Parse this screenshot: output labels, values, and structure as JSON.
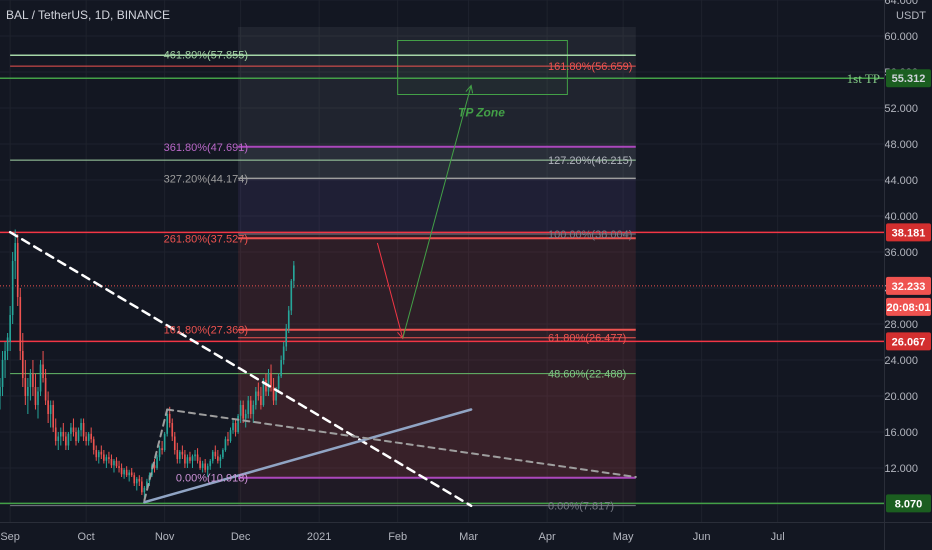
{
  "header": {
    "title": "BAL / TetherUS, 1D, BINANCE",
    "currency": "USDT"
  },
  "colors": {
    "bg": "#131722",
    "up": "#26a69a",
    "down": "#ef5350",
    "white": "#d1d4dc"
  },
  "yaxis": {
    "ticks": [
      "64.000",
      "60.000",
      "56.000",
      "52.000",
      "48.000",
      "44.000",
      "40.000",
      "36.000",
      "32.000",
      "28.000",
      "24.000",
      "20.000",
      "16.000",
      "12.000",
      "8.000"
    ],
    "tick_values": [
      64,
      60,
      56,
      52,
      48,
      44,
      40,
      36,
      32,
      28,
      24,
      20,
      16,
      12,
      8
    ]
  },
  "xaxis": {
    "labels": [
      {
        "label": "Sep",
        "day": 0
      },
      {
        "label": "Oct",
        "day": 30
      },
      {
        "label": "Nov",
        "day": 61
      },
      {
        "label": "Dec",
        "day": 91
      },
      {
        "label": "2021",
        "day": 122
      },
      {
        "label": "Feb",
        "day": 153
      },
      {
        "label": "Mar",
        "day": 181
      },
      {
        "label": "Apr",
        "day": 212
      },
      {
        "label": "May",
        "day": 242
      },
      {
        "label": "Jun",
        "day": 273
      },
      {
        "label": "Jul",
        "day": 303
      }
    ]
  },
  "price_badges": [
    {
      "label": "55.312",
      "value": 55.312,
      "color": "#1b5e20",
      "text": "#d1d4dc",
      "caption": "1st TP",
      "caption_color": "#81c784"
    },
    {
      "label": "38.181",
      "value": 38.181,
      "color": "#d32f2f",
      "text": "#ffffff"
    },
    {
      "label": "32.233",
      "value": 32.233,
      "color": "#ef5350",
      "text": "#ffffff"
    },
    {
      "label": "20:08:01",
      "value": 29.9,
      "color": "#ef5350",
      "text": "#ffffff"
    },
    {
      "label": "26.067",
      "value": 26.067,
      "color": "#d32f2f",
      "text": "#ffffff"
    },
    {
      "label": "8.070",
      "value": 8.07,
      "color": "#1b5e20",
      "text": "#ffffff"
    }
  ],
  "annotations": [
    {
      "text": "461.80%(57.855)",
      "value": 57.855,
      "color": "#a5d6a7"
    },
    {
      "text": "161.80%(56.659)",
      "value": 56.659,
      "color": "#ef5350"
    },
    {
      "text": "TP Zone",
      "value": 51.5,
      "color": "#43a047"
    },
    {
      "text": "361.80%(47.691)",
      "value": 47.691,
      "color": "#ba68c8"
    },
    {
      "text": "127.20%(46.215)",
      "value": 46.215,
      "color": "#b2b5be"
    },
    {
      "text": "327.20%(44.174)",
      "value": 44.174,
      "color": "#9e9e9e"
    },
    {
      "text": "261.80%(37.527)",
      "value": 37.527,
      "color": "#ef5350"
    },
    {
      "text": "100.00%(38.004)",
      "value": 38.004,
      "color": "#787b86"
    },
    {
      "text": "161.80%(27.363)",
      "value": 27.363,
      "color": "#ef5350"
    },
    {
      "text": "61.80%(26.477)",
      "value": 26.477,
      "color": "#ef5350"
    },
    {
      "text": "48.60%(22.488)",
      "value": 22.488,
      "color": "#81c784"
    },
    {
      "text": "0.00%(10.918)",
      "value": 10.918,
      "color": "#ce93d8"
    },
    {
      "text": "0.00%(7.817)",
      "value": 7.817,
      "color": "#787b86"
    }
  ],
  "chart_data": {
    "type": "candlestick",
    "symbol": "BAL / TetherUS",
    "interval": "1D",
    "exchange": "BINANCE",
    "ylim": [
      6,
      64
    ],
    "x_range_days": [
      -4,
      345
    ],
    "x_note": "days since Sep 1, 2020",
    "candles": [
      [
        -4,
        20,
        22,
        18.5,
        21
      ],
      [
        -3,
        21,
        25,
        20,
        24
      ],
      [
        -2,
        24,
        26,
        22,
        25
      ],
      [
        -1,
        25,
        27,
        24,
        26.5
      ],
      [
        0,
        26,
        30,
        25,
        29
      ],
      [
        1,
        29,
        36,
        28,
        35
      ],
      [
        2,
        35,
        38.5,
        33,
        37
      ],
      [
        3,
        37,
        38,
        30,
        31
      ],
      [
        4,
        31,
        32,
        24,
        25
      ],
      [
        5,
        25,
        27,
        21,
        22
      ],
      [
        6,
        22,
        24,
        19,
        20
      ],
      [
        7,
        20,
        22,
        18,
        21
      ],
      [
        8,
        21,
        23,
        19.5,
        22.5
      ],
      [
        9,
        22.5,
        24,
        20,
        21
      ],
      [
        10,
        21,
        22.5,
        18.5,
        19
      ],
      [
        11,
        19,
        21,
        17.5,
        20.5
      ],
      [
        12,
        20.5,
        24,
        20,
        23.5
      ],
      [
        13,
        23.5,
        25,
        21.5,
        22
      ],
      [
        14,
        22,
        23,
        19,
        19.5
      ],
      [
        15,
        19.5,
        20.5,
        17,
        18
      ],
      [
        16,
        18,
        19.5,
        16.5,
        19
      ],
      [
        17,
        19,
        19.5,
        16,
        16.5
      ],
      [
        18,
        16.5,
        17.5,
        14.5,
        15
      ],
      [
        19,
        15,
        16,
        14,
        15.5
      ],
      [
        20,
        15.5,
        16.5,
        14.5,
        16
      ],
      [
        21,
        16,
        17,
        15,
        15.5
      ],
      [
        22,
        15.5,
        16,
        14,
        14.5
      ],
      [
        23,
        14.5,
        16,
        14,
        15.8
      ],
      [
        24,
        15.8,
        17,
        15,
        16.5
      ],
      [
        25,
        16.5,
        17.5,
        15.5,
        16
      ],
      [
        26,
        16,
        16.5,
        14.5,
        15
      ],
      [
        27,
        15,
        16.5,
        14.8,
        16.2
      ],
      [
        28,
        16.2,
        17.5,
        15.5,
        17
      ],
      [
        29,
        17,
        17.5,
        15,
        15.5
      ],
      [
        30,
        15.5,
        16,
        14.5,
        15
      ],
      [
        31,
        15,
        16,
        14.5,
        15.8
      ],
      [
        32,
        15.8,
        16.5,
        14.8,
        15.2
      ],
      [
        33,
        15.2,
        15.5,
        13.5,
        14
      ],
      [
        34,
        14,
        14.5,
        12.8,
        13.2
      ],
      [
        35,
        13.2,
        14,
        12.5,
        13.8
      ],
      [
        36,
        13.8,
        14.5,
        13,
        13.5
      ],
      [
        37,
        13.5,
        14,
        12.5,
        12.8
      ],
      [
        38,
        12.8,
        13.5,
        12,
        13.2
      ],
      [
        39,
        13.2,
        13.8,
        12.5,
        13
      ],
      [
        40,
        13,
        13.5,
        12,
        12.3
      ],
      [
        41,
        12.3,
        13,
        11.5,
        12.8
      ],
      [
        42,
        12.8,
        13.2,
        12,
        12.2
      ],
      [
        43,
        12.2,
        12.8,
        11.5,
        12
      ],
      [
        44,
        12,
        12.5,
        11,
        11.3
      ],
      [
        45,
        11.3,
        12,
        10.8,
        11.8
      ],
      [
        46,
        11.8,
        12.2,
        11,
        11.2
      ],
      [
        47,
        11.2,
        11.8,
        10.5,
        11.5
      ],
      [
        48,
        11.5,
        12,
        11,
        11.2
      ],
      [
        49,
        11.2,
        11.5,
        10,
        10.3
      ],
      [
        50,
        10.3,
        11,
        9.5,
        10.8
      ],
      [
        51,
        10.8,
        11.2,
        10,
        10.5
      ],
      [
        52,
        10.5,
        11,
        9,
        9.3
      ],
      [
        53,
        9.3,
        10,
        8.4,
        9.8
      ],
      [
        54,
        9.8,
        10.8,
        9.5,
        10.5
      ],
      [
        55,
        10.5,
        11.5,
        10,
        11.2
      ],
      [
        56,
        11.2,
        12.5,
        11,
        12.3
      ],
      [
        57,
        12.3,
        13,
        11.5,
        12
      ],
      [
        58,
        12,
        13.5,
        11.8,
        13.2
      ],
      [
        59,
        13.2,
        14.5,
        12.8,
        14.2
      ],
      [
        60,
        14.2,
        15,
        13.5,
        14
      ],
      [
        61,
        14,
        16,
        13.8,
        15.8
      ],
      [
        62,
        15.8,
        18.5,
        15.5,
        18
      ],
      [
        63,
        18,
        18.8,
        16.5,
        17
      ],
      [
        64,
        17,
        17.5,
        15,
        15.5
      ],
      [
        65,
        15.5,
        16,
        13.5,
        14
      ],
      [
        66,
        14,
        14.8,
        12.5,
        13
      ],
      [
        67,
        13,
        14,
        12.5,
        13.8
      ],
      [
        68,
        13.8,
        14.5,
        13,
        13.5
      ],
      [
        69,
        13.5,
        14,
        12,
        12.5
      ],
      [
        70,
        12.5,
        13.5,
        12,
        13.2
      ],
      [
        71,
        13.2,
        13.8,
        12.5,
        12.8
      ],
      [
        72,
        12.8,
        13.5,
        12,
        13.3
      ],
      [
        73,
        13.3,
        14,
        12.8,
        13.5
      ],
      [
        74,
        13.5,
        14.2,
        12.5,
        12.8
      ],
      [
        75,
        12.8,
        13.2,
        11.8,
        12
      ],
      [
        76,
        12,
        12.8,
        11.5,
        12.5
      ],
      [
        77,
        12.5,
        13,
        11.5,
        11.8
      ],
      [
        78,
        11.8,
        12.5,
        11,
        12.2
      ],
      [
        79,
        12.2,
        13,
        11.8,
        12.8
      ],
      [
        80,
        12.8,
        14,
        12.5,
        13.8
      ],
      [
        81,
        13.8,
        14.5,
        13,
        13.3
      ],
      [
        82,
        13.3,
        14,
        12.5,
        12.8
      ],
      [
        83,
        12.8,
        13.5,
        12,
        13.2
      ],
      [
        84,
        13.2,
        14.2,
        13,
        14
      ],
      [
        85,
        14,
        15.5,
        13.8,
        15.2
      ],
      [
        86,
        15.2,
        16,
        14.5,
        15
      ],
      [
        87,
        15,
        16.5,
        14.8,
        16.2
      ],
      [
        88,
        16.2,
        17.5,
        15.8,
        17
      ],
      [
        89,
        17,
        17.5,
        15.5,
        16
      ],
      [
        90,
        16,
        18,
        15.8,
        17.8
      ],
      [
        91,
        17.8,
        19.5,
        17,
        19
      ],
      [
        92,
        19,
        19.5,
        17,
        17.5
      ],
      [
        93,
        17.5,
        18.5,
        16.5,
        18
      ],
      [
        94,
        18,
        20,
        17.5,
        19.5
      ],
      [
        95,
        19.5,
        20,
        17.5,
        18
      ],
      [
        96,
        18,
        19.5,
        17,
        19
      ],
      [
        97,
        19,
        21,
        18.5,
        20.5
      ],
      [
        98,
        20.5,
        21.5,
        19.5,
        20
      ],
      [
        99,
        20,
        21,
        18.5,
        19
      ],
      [
        100,
        19,
        22,
        18.8,
        21.8
      ],
      [
        101,
        21.8,
        22.5,
        20,
        20.5
      ],
      [
        102,
        20.5,
        23,
        20,
        22.5
      ],
      [
        103,
        22.5,
        23.5,
        20.5,
        21
      ],
      [
        104,
        21,
        22,
        19,
        19.5
      ],
      [
        105,
        19.5,
        21,
        19,
        20.8
      ],
      [
        106,
        20.8,
        22.5,
        20.5,
        22.2
      ],
      [
        107,
        22.2,
        24.5,
        22,
        24
      ],
      [
        108,
        24,
        26,
        23.5,
        25.5
      ],
      [
        109,
        25.5,
        28,
        25,
        27.5
      ],
      [
        110,
        27.5,
        30,
        27,
        29.5
      ],
      [
        111,
        29.5,
        33,
        29,
        32.8
      ],
      [
        112,
        32.8,
        35,
        32,
        34.5
      ]
    ],
    "horizontal_lines": [
      {
        "value": 55.312,
        "color": "#43a047",
        "width": 1.5,
        "x_from": -4,
        "x_to": 355
      },
      {
        "value": 38.181,
        "color": "#f23645",
        "width": 1.5,
        "x_from": -4,
        "x_to": 355
      },
      {
        "value": 26.067,
        "color": "#f23645",
        "width": 1.5,
        "x_from": -4,
        "x_to": 355
      },
      {
        "value": 8.07,
        "color": "#43a047",
        "width": 1.5,
        "x_from": -4,
        "x_to": 355
      },
      {
        "value": 32.233,
        "color": "#ef5350",
        "width": 1,
        "dash": "1,2",
        "x_from": -4,
        "x_to": 355
      },
      {
        "value": 57.855,
        "color": "#a5d6a7",
        "width": 1.5,
        "x_from": 0,
        "x_to": 247
      },
      {
        "value": 56.659,
        "color": "#ef5350",
        "width": 1,
        "x_from": 0,
        "x_to": 247
      },
      {
        "value": 47.691,
        "color": "#ab47bc",
        "width": 2,
        "x_from": 90,
        "x_to": 247
      },
      {
        "value": 46.215,
        "color": "#a5d6a7",
        "width": 1,
        "x_from": 0,
        "x_to": 247
      },
      {
        "value": 44.174,
        "color": "#9e9e9e",
        "width": 1.5,
        "x_from": 90,
        "x_to": 247
      },
      {
        "value": 38.004,
        "color": "#787b86",
        "width": 1,
        "x_from": 90,
        "x_to": 247
      },
      {
        "value": 37.527,
        "color": "#ef5350",
        "width": 2,
        "x_from": 90,
        "x_to": 247
      },
      {
        "value": 27.363,
        "color": "#ef5350",
        "width": 2,
        "x_from": 90,
        "x_to": 247
      },
      {
        "value": 26.477,
        "color": "#ef5350",
        "width": 1,
        "x_from": 90,
        "x_to": 247
      },
      {
        "value": 22.488,
        "color": "#66bb6a",
        "width": 1,
        "x_from": 0,
        "x_to": 247
      },
      {
        "value": 10.918,
        "color": "#ab47bc",
        "width": 2,
        "x_from": 90,
        "x_to": 247
      },
      {
        "value": 7.817,
        "color": "#787b86",
        "width": 1,
        "x_from": 0,
        "x_to": 247
      }
    ],
    "trendlines": [
      {
        "from": [
          0,
          38.2
        ],
        "to": [
          182,
          7.8
        ],
        "color": "#ffffff",
        "dash": "8,6",
        "width": 2.5
      },
      {
        "from": [
          53,
          8.2
        ],
        "to": [
          182,
          18.5
        ],
        "color": "#90a4c4",
        "width": 2.5
      },
      {
        "from": [
          53,
          8.4
        ],
        "to": [
          62,
          18.5
        ],
        "color": "#9e9e9e",
        "dash": "6,5",
        "width": 2
      },
      {
        "from": [
          62,
          18.5
        ],
        "to": [
          247,
          11
        ],
        "color": "#9e9e9e",
        "dash": "6,5",
        "width": 2
      }
    ],
    "arrows": [
      {
        "from": [
          145,
          37
        ],
        "to": [
          155,
          26.4
        ],
        "color": "#f23645"
      },
      {
        "from": [
          155,
          26.4
        ],
        "to": [
          182,
          54.5
        ],
        "color": "#43a047"
      }
    ],
    "zones": [
      {
        "x_from": 90,
        "x_to": 247,
        "y_from": 61,
        "y_to": 47.7,
        "color": "#ffffff",
        "opacity": 0.06
      },
      {
        "x_from": 90,
        "x_to": 247,
        "y_from": 47.7,
        "y_to": 44.2,
        "color": "#b0bec5",
        "opacity": 0.14
      },
      {
        "x_from": 90,
        "x_to": 247,
        "y_from": 44.2,
        "y_to": 38,
        "color": "#7e57c2",
        "opacity": 0.12
      },
      {
        "x_from": 90,
        "x_to": 247,
        "y_from": 38,
        "y_to": 10.9,
        "color": "#ef5350",
        "opacity": 0.12
      },
      {
        "x_from": 90,
        "x_to": 247,
        "y_from": 22.5,
        "y_to": 7.8,
        "color": "#ef5350",
        "opacity": 0.06
      },
      {
        "x_from": 153,
        "x_to": 220,
        "y_from": 59.5,
        "y_to": 53.5,
        "color": "#43a047",
        "opacity": 0.06,
        "stroke": "#43a047"
      }
    ]
  }
}
